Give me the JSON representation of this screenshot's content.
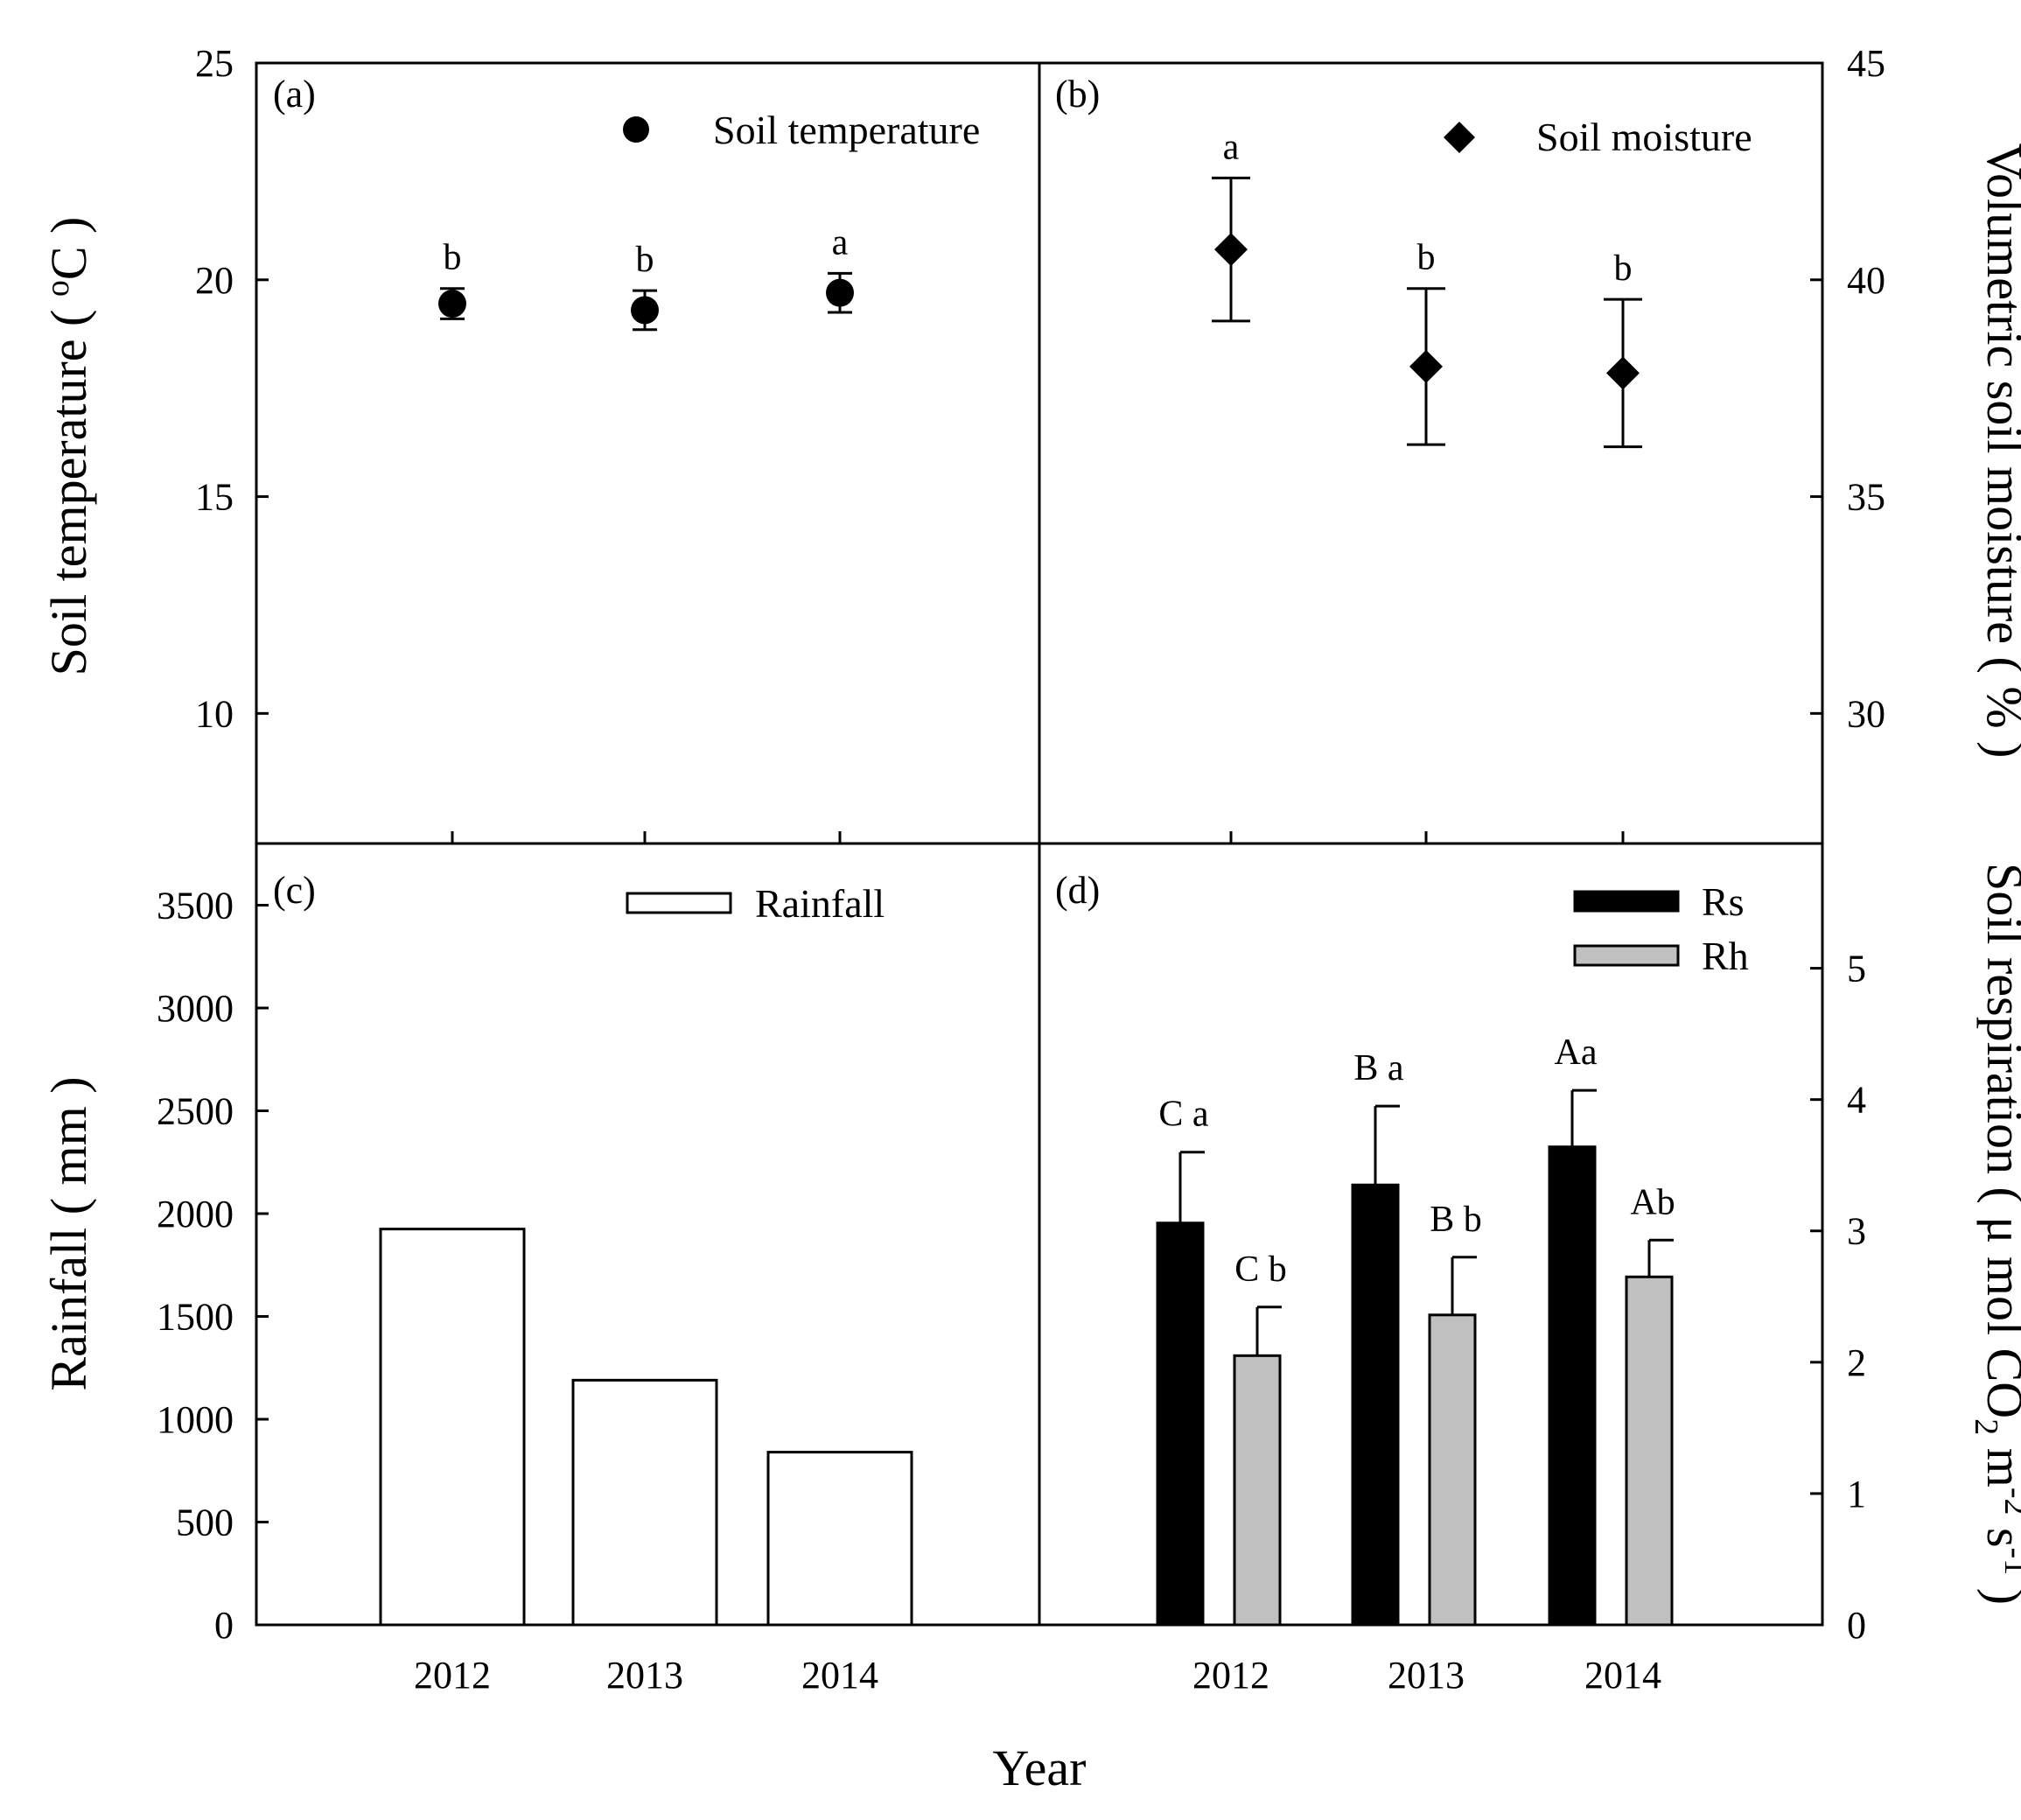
{
  "chart_data": [
    {
      "panel": "(a)",
      "type": "scatter",
      "xlabel": "Year",
      "ylabel": "Soil temperature ( oC )",
      "ylabel_main": "Soil temperature ( ",
      "ylabel_sup": "o",
      "ylabel_tail": "C )",
      "ylim": [
        7,
        25
      ],
      "yticks": [
        10,
        15,
        20,
        25
      ],
      "x": [
        "2012",
        "2013",
        "2014"
      ],
      "series": [
        {
          "name": "Soil temperature",
          "marker": "circle",
          "values": [
            19.45,
            19.3,
            19.7
          ],
          "errors": [
            0.35,
            0.45,
            0.45
          ],
          "significance": [
            "b",
            "b",
            "a"
          ]
        }
      ]
    },
    {
      "panel": "(b)",
      "type": "scatter",
      "xlabel": "Year",
      "ylabel": "Volumetric soil moisture ( % )",
      "ylim": [
        27,
        45
      ],
      "yticks": [
        30,
        35,
        40,
        45
      ],
      "x": [
        "2012",
        "2013",
        "2014"
      ],
      "series": [
        {
          "name": "Soil moisture",
          "marker": "diamond",
          "values": [
            40.7,
            38.0,
            37.85
          ],
          "errors": [
            1.65,
            1.8,
            1.7
          ],
          "significance": [
            "a",
            "b",
            "b"
          ]
        }
      ]
    },
    {
      "panel": "(c)",
      "type": "bar",
      "xlabel": "Year",
      "ylabel": "Rainfall ( mm )",
      "ylim": [
        0,
        3800
      ],
      "yticks": [
        0,
        500,
        1000,
        1500,
        2000,
        2500,
        3000,
        3500
      ],
      "categories": [
        "2012",
        "2013",
        "2014"
      ],
      "series": [
        {
          "name": "Rainfall",
          "color": "#ffffff",
          "values": [
            1925,
            1190,
            840
          ]
        }
      ]
    },
    {
      "panel": "(d)",
      "type": "bar",
      "xlabel": "Year",
      "ylabel": "Soil respiration ( μ mol CO2 m-2 s-1 )",
      "ylabel_parts": {
        "a": "Soil respiration ( μ mol CO",
        "sub": "2",
        "b": " m",
        "sup1": "-2",
        "c": " s",
        "sup2": "-1",
        "d": " )"
      },
      "ylim": [
        0,
        5.95
      ],
      "yticks": [
        0,
        1,
        2,
        3,
        4,
        5
      ],
      "categories": [
        "2012",
        "2013",
        "2014"
      ],
      "series": [
        {
          "name": "Rs",
          "color": "#000000",
          "values": [
            3.06,
            3.35,
            3.64
          ],
          "errors": [
            0.54,
            0.6,
            0.43
          ],
          "significance": [
            "C a",
            "B a",
            "Aa"
          ]
        },
        {
          "name": "Rh",
          "color": "#c0c0c0",
          "values": [
            2.05,
            2.36,
            2.65
          ],
          "errors": [
            0.37,
            0.44,
            0.28
          ],
          "significance": [
            "C b",
            "B b",
            "Ab"
          ]
        }
      ]
    }
  ],
  "shared_xlabel": "Year"
}
